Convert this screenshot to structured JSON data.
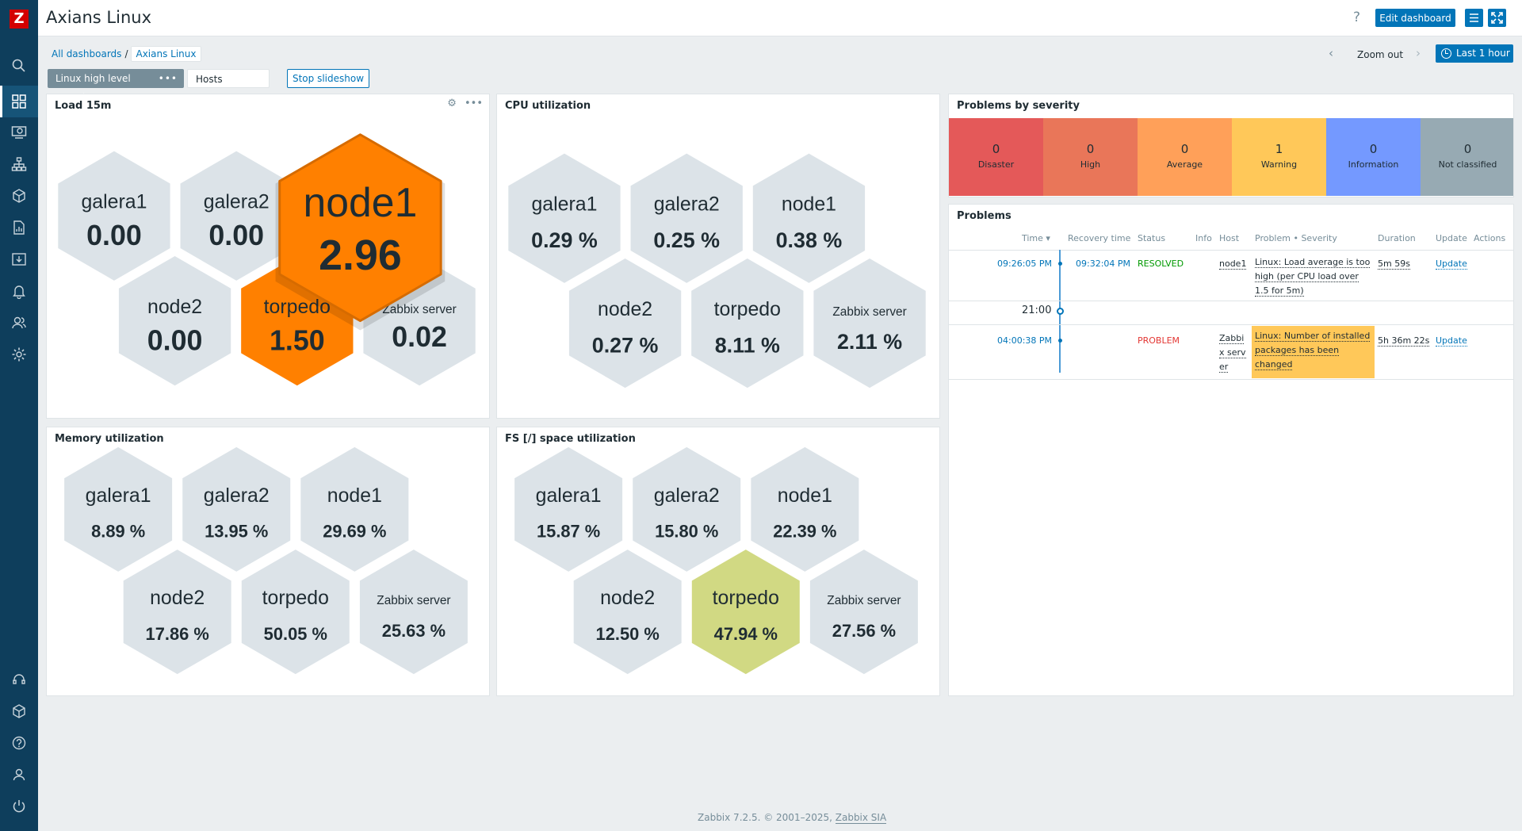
{
  "app": {
    "logo_letter": "Z",
    "title": "Axians Linux"
  },
  "header": {
    "help": "?",
    "edit_label": "Edit dashboard"
  },
  "breadcrumb": {
    "root": "All dashboards",
    "current": "Axians Linux"
  },
  "timeline": {
    "zoom_out": "Zoom out",
    "period": "Last 1 hour"
  },
  "tabs": {
    "active": "Linux high level overview",
    "active_menu": "•••",
    "hosts": "Hosts overview",
    "stop": "Stop slideshow"
  },
  "sidebar_icons": [
    "search-icon",
    "dashboard-icon",
    "monitoring-icon",
    "network-icon",
    "inventory-icon",
    "reports-icon",
    "data-collection-icon",
    "alerts-icon",
    "users-icon",
    "settings-icon",
    "support-icon",
    "integrations-icon",
    "help-icon",
    "user-settings-icon",
    "signout-icon"
  ],
  "colors": {
    "default_hex": "#dce3e8",
    "orange": "#ff8000",
    "olive": "#d1d983"
  },
  "widgets": {
    "load": {
      "title": "Load 15m",
      "gear": "⚙",
      "menu": "•••",
      "cells": [
        {
          "host": "galera1",
          "value": "0.00"
        },
        {
          "host": "galera2",
          "value": "0.00"
        },
        {
          "host": "node1",
          "value": "2.96",
          "highlight": "orange",
          "enlarged": true
        },
        {
          "host": "node2",
          "value": "0.00"
        },
        {
          "host": "torpedo",
          "value": "1.50",
          "highlight": "orange"
        },
        {
          "host": "Zabbix server",
          "value": "0.02"
        }
      ]
    },
    "cpu": {
      "title": "CPU utilization",
      "cells": [
        {
          "host": "galera1",
          "value": "0.29 %"
        },
        {
          "host": "galera2",
          "value": "0.25 %"
        },
        {
          "host": "node1",
          "value": "0.38 %"
        },
        {
          "host": "node2",
          "value": "0.27 %"
        },
        {
          "host": "torpedo",
          "value": "8.11 %"
        },
        {
          "host": "Zabbix server",
          "value": "2.11 %"
        }
      ]
    },
    "memory": {
      "title": "Memory utilization",
      "cells": [
        {
          "host": "galera1",
          "value": "8.89 %"
        },
        {
          "host": "galera2",
          "value": "13.95 %"
        },
        {
          "host": "node1",
          "value": "29.69 %"
        },
        {
          "host": "node2",
          "value": "17.86 %"
        },
        {
          "host": "torpedo",
          "value": "50.05 %"
        },
        {
          "host": "Zabbix server",
          "value": "25.63 %"
        }
      ]
    },
    "fs": {
      "title": "FS [/] space utilization",
      "cells": [
        {
          "host": "galera1",
          "value": "15.87 %"
        },
        {
          "host": "galera2",
          "value": "15.80 %"
        },
        {
          "host": "node1",
          "value": "22.39 %"
        },
        {
          "host": "node2",
          "value": "12.50 %"
        },
        {
          "host": "torpedo",
          "value": "47.94 %",
          "highlight": "olive"
        },
        {
          "host": "Zabbix server",
          "value": "27.56 %"
        }
      ]
    },
    "severity": {
      "title": "Problems by severity",
      "items": [
        {
          "count": "0",
          "label": "Disaster",
          "color": "#e45959"
        },
        {
          "count": "0",
          "label": "High",
          "color": "#e97659"
        },
        {
          "count": "0",
          "label": "Average",
          "color": "#ffa059"
        },
        {
          "count": "1",
          "label": "Warning",
          "color": "#ffc859"
        },
        {
          "count": "0",
          "label": "Information",
          "color": "#7499ff"
        },
        {
          "count": "0",
          "label": "Not classified",
          "color": "#97aab3"
        }
      ]
    },
    "problems": {
      "title": "Problems",
      "columns": {
        "time": "Time ▾",
        "recovery": "Recovery time",
        "status": "Status",
        "info": "Info",
        "host": "Host",
        "problem": "Problem • Severity",
        "duration": "Duration",
        "update": "Update",
        "actions": "Actions"
      },
      "rows": [
        {
          "time": "09:26:05 PM",
          "recovery": "09:32:04 PM",
          "status": "RESOLVED",
          "host": "node1",
          "problem": "Linux: Load average is too high (per CPU load over 1.5 for 5m)",
          "duration": "5m 59s",
          "update": "Update"
        },
        {
          "time": "04:00:38 PM",
          "recovery": "",
          "status": "PROBLEM",
          "host": "Zabbix server",
          "problem": "Linux: Number of installed packages has been changed",
          "duration": "5h 36m 22s",
          "update": "Update"
        }
      ],
      "marker": "21:00"
    }
  },
  "footer": {
    "text": "Zabbix 7.2.5. © 2001–2025, ",
    "company": "Zabbix SIA"
  }
}
